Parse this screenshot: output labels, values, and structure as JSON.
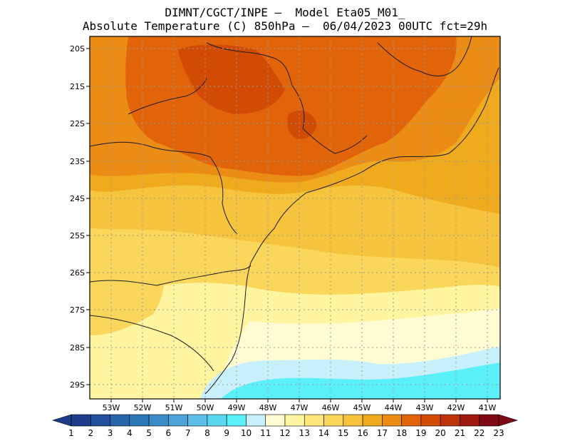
{
  "header": {
    "line1": "DIMNT/CGCT/INPE –  Model Eta05_M01_",
    "line2": "Absolute Temperature (C) 850hPa –  06/04/2023 00UTC fct=29h"
  },
  "map": {
    "lat_labels": [
      "20S",
      "21S",
      "22S",
      "23S",
      "24S",
      "25S",
      "26S",
      "27S",
      "28S",
      "29S"
    ],
    "lon_labels": [
      "53W",
      "52W",
      "51W",
      "50W",
      "49W",
      "48W",
      "47W",
      "46W",
      "45W",
      "44W",
      "43W",
      "42W",
      "41W"
    ]
  },
  "colorbar": {
    "labels": [
      "1",
      "2",
      "3",
      "4",
      "5",
      "6",
      "7",
      "8",
      "9",
      "10",
      "11",
      "12",
      "13",
      "14",
      "15",
      "16",
      "17",
      "18",
      "19",
      "20",
      "21",
      "22",
      "23"
    ],
    "colors": [
      "#1e3c8c",
      "#23509c",
      "#2864aa",
      "#2d78b8",
      "#3c8cc8",
      "#4ea4d8",
      "#5ebfe6",
      "#5ad7ee",
      "#5af0fa",
      "#c8f0fa",
      "#fffbd2",
      "#fff5a0",
      "#ffe678",
      "#fad75a",
      "#f5c33c",
      "#f0aa1e",
      "#eb8c14",
      "#e1640a",
      "#d24b05",
      "#be320a",
      "#a0190f",
      "#7d0a14"
    ]
  }
}
